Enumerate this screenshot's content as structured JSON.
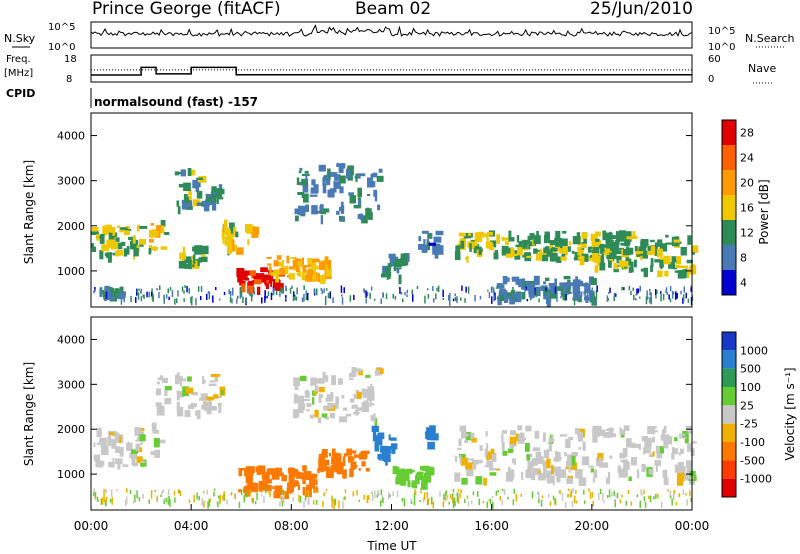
{
  "header": {
    "station": "Prince George (fitACF)",
    "beam": "Beam 02",
    "date": "25/Jun/2010"
  },
  "panels": {
    "nsky": {
      "label": "N.Sky",
      "tick_hi": "10^5",
      "tick_lo": "10^0",
      "right_label": "N.Search",
      "right_hi": "10^5",
      "right_lo": "10^0"
    },
    "freq": {
      "label_top": "Freq.",
      "label_unit": "[MHz]",
      "tick_hi": "18",
      "tick_lo": "8",
      "right_label": "Nave",
      "right_hi": "60",
      "right_lo": "0",
      "dotted_level": 12.5
    },
    "cpid": {
      "label": "CPID",
      "text": "normalsound (fast) -157"
    }
  },
  "colorbars": {
    "power": {
      "label": "Power [dB]",
      "ticks": [
        "28",
        "24",
        "20",
        "16",
        "12",
        "8",
        "4"
      ],
      "colors": [
        "#e00000",
        "#ff6000",
        "#ff9a00",
        "#f0c800",
        "#2e8b57",
        "#4a7ab5",
        "#0000d0"
      ]
    },
    "velocity": {
      "label": "Velocity [m s⁻¹]",
      "ticks": [
        "1000",
        "500",
        "100",
        "25",
        "-25",
        "-100",
        "-500",
        "-1000"
      ],
      "colors": [
        "#1838c8",
        "#2a7fd0",
        "#2e9b57",
        "#66cc33",
        "#c8c8c8",
        "#f0b000",
        "#ff7800",
        "#ff3c00",
        "#e00000"
      ]
    }
  },
  "chart_data": [
    {
      "type": "heatmap",
      "title": "Power",
      "ylabel": "Slant Range [km]",
      "ylim": [
        200,
        4500
      ],
      "yticks": [
        "1000",
        "2000",
        "3000",
        "4000"
      ],
      "xlim": [
        0,
        24
      ],
      "features": [
        {
          "t": [
            0,
            2
          ],
          "r": [
            1350,
            2050
          ],
          "v": 14
        },
        {
          "t": [
            0.3,
            1.2
          ],
          "r": [
            500,
            700
          ],
          "v": 11
        },
        {
          "t": [
            2.3,
            3.0
          ],
          "r": [
            1500,
            2200
          ],
          "v": 16
        },
        {
          "t": [
            3.3,
            4.3
          ],
          "r": [
            2400,
            3300
          ],
          "v": 12
        },
        {
          "t": [
            4.1,
            5.2
          ],
          "r": [
            2500,
            3000
          ],
          "v": 10
        },
        {
          "t": [
            3.5,
            4.5
          ],
          "r": [
            1100,
            1600
          ],
          "v": 13
        },
        {
          "t": [
            5.2,
            6.5
          ],
          "r": [
            1500,
            2150
          ],
          "v": 16
        },
        {
          "t": [
            5.8,
            7.5
          ],
          "r": [
            650,
            1100
          ],
          "v": 28
        },
        {
          "t": [
            7.0,
            9.5
          ],
          "r": [
            900,
            1350
          ],
          "v": 18
        },
        {
          "t": [
            8.0,
            11.5
          ],
          "r": [
            2200,
            3400
          ],
          "v": 9
        },
        {
          "t": [
            11.5,
            12.5
          ],
          "r": [
            900,
            1400
          ],
          "v": 10
        },
        {
          "t": [
            13.0,
            13.8
          ],
          "r": [
            1400,
            1900
          ],
          "v": 8
        },
        {
          "t": [
            14.5,
            22
          ],
          "r": [
            1300,
            1900
          ],
          "v": 13
        },
        {
          "t": [
            16,
            20
          ],
          "r": [
            400,
            900
          ],
          "v": 9
        },
        {
          "t": [
            20,
            24
          ],
          "r": [
            1000,
            1800
          ],
          "v": 13
        }
      ]
    },
    {
      "type": "heatmap",
      "title": "Velocity",
      "ylabel": "Slant Range [km]",
      "ylim": [
        200,
        4500
      ],
      "yticks": [
        "1000",
        "2000",
        "3000",
        "4000"
      ],
      "xlim": [
        0,
        24
      ],
      "xticks": [
        "00:00",
        "04:00",
        "08:00",
        "12:00",
        "16:00",
        "20:00",
        "00:00"
      ],
      "xlabel": "Time UT",
      "features": [
        {
          "t": [
            0,
            2
          ],
          "r": [
            1200,
            2100
          ],
          "v": 0
        },
        {
          "t": [
            2.3,
            3.0
          ],
          "r": [
            1500,
            3300
          ],
          "v": 0
        },
        {
          "t": [
            3.3,
            5.2
          ],
          "r": [
            2400,
            3300
          ],
          "v": 0
        },
        {
          "t": [
            5.8,
            9.0
          ],
          "r": [
            600,
            1200
          ],
          "v": -150
        },
        {
          "t": [
            9.0,
            11.0
          ],
          "r": [
            1100,
            1600
          ],
          "v": -250
        },
        {
          "t": [
            8.0,
            11.5
          ],
          "r": [
            2200,
            3400
          ],
          "v": 0
        },
        {
          "t": [
            11.2,
            12.0
          ],
          "r": [
            1300,
            2200
          ],
          "v": 600
        },
        {
          "t": [
            12.0,
            13.5
          ],
          "r": [
            800,
            1200
          ],
          "v": 60
        },
        {
          "t": [
            13.2,
            13.6
          ],
          "r": [
            1600,
            2200
          ],
          "v": 900
        },
        {
          "t": [
            14.5,
            24
          ],
          "r": [
            900,
            2100
          ],
          "v": 0
        }
      ]
    }
  ]
}
